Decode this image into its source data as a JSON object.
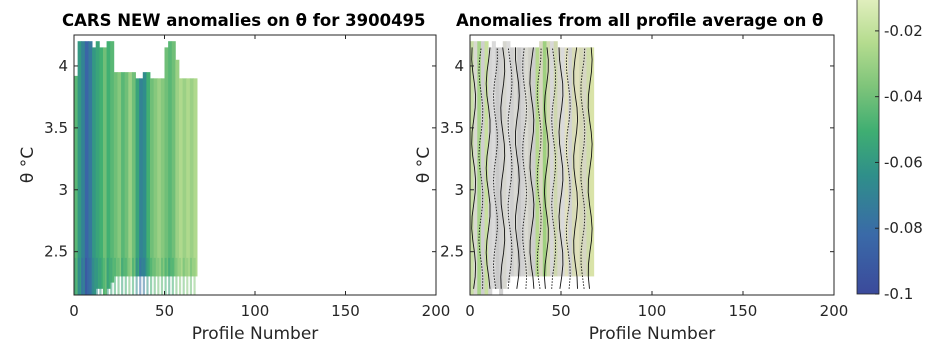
{
  "chart_data": [
    {
      "type": "heatmap",
      "title": "CARS NEW anomalies on θ for 3900495",
      "xlabel": "Profile Number",
      "ylabel": "θ °C",
      "xlim": [
        0,
        200
      ],
      "ylim": [
        2.15,
        4.25
      ],
      "xticks": [
        "0",
        "50",
        "100",
        "150",
        "200"
      ],
      "yticks": [
        "2.5",
        "3",
        "3.5",
        "4"
      ],
      "value_range": [
        -0.1,
        -0.01
      ],
      "profiles": [
        {
          "x": 1,
          "ymin": 2.15,
          "ymax": 3.92,
          "v": -0.045
        },
        {
          "x": 3,
          "ymin": 2.15,
          "ymax": 4.2,
          "v": -0.06
        },
        {
          "x": 5,
          "ymin": 2.15,
          "ymax": 4.2,
          "v": -0.07
        },
        {
          "x": 7,
          "ymin": 2.15,
          "ymax": 4.2,
          "v": -0.085
        },
        {
          "x": 9,
          "ymin": 2.15,
          "ymax": 4.2,
          "v": -0.075
        },
        {
          "x": 11,
          "ymin": 2.15,
          "ymax": 4.15,
          "v": -0.06
        },
        {
          "x": 13,
          "ymin": 2.2,
          "ymax": 4.2,
          "v": -0.055
        },
        {
          "x": 15,
          "ymin": 2.2,
          "ymax": 4.15,
          "v": -0.05
        },
        {
          "x": 17,
          "ymin": 2.15,
          "ymax": 4.15,
          "v": -0.04
        },
        {
          "x": 19,
          "ymin": 2.2,
          "ymax": 4.2,
          "v": -0.05
        },
        {
          "x": 21,
          "ymin": 2.25,
          "ymax": 4.2,
          "v": -0.045
        },
        {
          "x": 23,
          "ymin": 2.3,
          "ymax": 3.95,
          "v": -0.04
        },
        {
          "x": 25,
          "ymin": 2.3,
          "ymax": 3.95,
          "v": -0.035
        },
        {
          "x": 27,
          "ymin": 2.3,
          "ymax": 3.95,
          "v": -0.045
        },
        {
          "x": 29,
          "ymin": 2.3,
          "ymax": 3.95,
          "v": -0.04
        },
        {
          "x": 31,
          "ymin": 2.3,
          "ymax": 3.95,
          "v": -0.03
        },
        {
          "x": 33,
          "ymin": 2.3,
          "ymax": 3.95,
          "v": -0.04
        },
        {
          "x": 35,
          "ymin": 2.3,
          "ymax": 3.9,
          "v": -0.055
        },
        {
          "x": 37,
          "ymin": 2.3,
          "ymax": 3.9,
          "v": -0.07
        },
        {
          "x": 39,
          "ymin": 2.3,
          "ymax": 3.95,
          "v": -0.065
        },
        {
          "x": 41,
          "ymin": 2.3,
          "ymax": 3.95,
          "v": -0.05
        },
        {
          "x": 43,
          "ymin": 2.3,
          "ymax": 3.9,
          "v": -0.04
        },
        {
          "x": 45,
          "ymin": 2.3,
          "ymax": 3.9,
          "v": -0.035
        },
        {
          "x": 47,
          "ymin": 2.3,
          "ymax": 3.9,
          "v": -0.03
        },
        {
          "x": 49,
          "ymin": 2.3,
          "ymax": 3.9,
          "v": -0.035
        },
        {
          "x": 51,
          "ymin": 2.3,
          "ymax": 4.15,
          "v": -0.04
        },
        {
          "x": 53,
          "ymin": 2.3,
          "ymax": 4.2,
          "v": -0.045
        },
        {
          "x": 55,
          "ymin": 2.3,
          "ymax": 4.2,
          "v": -0.04
        },
        {
          "x": 57,
          "ymin": 2.3,
          "ymax": 4.05,
          "v": -0.03
        },
        {
          "x": 59,
          "ymin": 2.3,
          "ymax": 3.9,
          "v": -0.025
        },
        {
          "x": 61,
          "ymin": 2.3,
          "ymax": 3.9,
          "v": -0.03
        },
        {
          "x": 63,
          "ymin": 2.3,
          "ymax": 3.9,
          "v": -0.025
        },
        {
          "x": 65,
          "ymin": 2.3,
          "ymax": 3.9,
          "v": -0.03
        },
        {
          "x": 67,
          "ymin": 2.3,
          "ymax": 3.9,
          "v": -0.025
        }
      ]
    },
    {
      "type": "heatmap",
      "title": "Anomalies from all profile average on θ",
      "xlabel": "Profile Number",
      "ylabel": "θ °C",
      "xlim": [
        0,
        200
      ],
      "ylim": [
        2.15,
        4.25
      ],
      "xticks": [
        "0",
        "50",
        "100",
        "150",
        "200"
      ],
      "yticks": [
        "2.5",
        "3",
        "3.5",
        "4"
      ],
      "note_contours": "solid and dotted black contour lines overlaid",
      "profiles": [
        {
          "x": 1,
          "ymin": 2.15,
          "ymax": 4.2,
          "c": "#c9dfa6"
        },
        {
          "x": 3,
          "ymin": 2.15,
          "ymax": 4.2,
          "c": "#d8d8d0"
        },
        {
          "x": 5,
          "ymin": 2.15,
          "ymax": 4.2,
          "c": "#a9d48a"
        },
        {
          "x": 7,
          "ymin": 2.15,
          "ymax": 4.2,
          "c": "#cfcfcf"
        },
        {
          "x": 9,
          "ymin": 2.15,
          "ymax": 4.2,
          "c": "#c8e0a0"
        },
        {
          "x": 11,
          "ymin": 2.15,
          "ymax": 4.15,
          "c": "#d4d4d4"
        },
        {
          "x": 13,
          "ymin": 2.2,
          "ymax": 4.2,
          "c": "#dadada"
        },
        {
          "x": 15,
          "ymin": 2.2,
          "ymax": 4.15,
          "c": "#c9c9c9"
        },
        {
          "x": 17,
          "ymin": 2.15,
          "ymax": 4.15,
          "c": "#d0d0d0"
        },
        {
          "x": 19,
          "ymin": 2.2,
          "ymax": 4.2,
          "c": "#d6d6cf"
        },
        {
          "x": 21,
          "ymin": 2.25,
          "ymax": 4.2,
          "c": "#dcdcdc"
        },
        {
          "x": 23,
          "ymin": 2.3,
          "ymax": 4.15,
          "c": "#cfcfcf"
        },
        {
          "x": 25,
          "ymin": 2.3,
          "ymax": 4.15,
          "c": "#d9d9d4"
        },
        {
          "x": 27,
          "ymin": 2.3,
          "ymax": 4.15,
          "c": "#c7c7c7"
        },
        {
          "x": 29,
          "ymin": 2.3,
          "ymax": 4.15,
          "c": "#d2d2d2"
        },
        {
          "x": 31,
          "ymin": 2.3,
          "ymax": 4.15,
          "c": "#dadad2"
        },
        {
          "x": 33,
          "ymin": 2.3,
          "ymax": 4.15,
          "c": "#d0d0c8"
        },
        {
          "x": 35,
          "ymin": 2.3,
          "ymax": 4.15,
          "c": "#cdcdcd"
        },
        {
          "x": 37,
          "ymin": 2.3,
          "ymax": 4.15,
          "c": "#b7d98f"
        },
        {
          "x": 39,
          "ymin": 2.3,
          "ymax": 4.2,
          "c": "#d8d8c0"
        },
        {
          "x": 41,
          "ymin": 2.3,
          "ymax": 4.2,
          "c": "#9fd07f"
        },
        {
          "x": 43,
          "ymin": 2.3,
          "ymax": 4.2,
          "c": "#d4dcb4"
        },
        {
          "x": 45,
          "ymin": 2.3,
          "ymax": 4.2,
          "c": "#d8d8d8"
        },
        {
          "x": 47,
          "ymin": 2.3,
          "ymax": 4.2,
          "c": "#cfd8b0"
        },
        {
          "x": 49,
          "ymin": 2.3,
          "ymax": 4.15,
          "c": "#d8d8cc"
        },
        {
          "x": 51,
          "ymin": 2.3,
          "ymax": 4.15,
          "c": "#dadada"
        },
        {
          "x": 53,
          "ymin": 2.3,
          "ymax": 4.15,
          "c": "#e1e1c0"
        },
        {
          "x": 55,
          "ymin": 2.3,
          "ymax": 4.15,
          "c": "#d2d2d2"
        },
        {
          "x": 57,
          "ymin": 2.3,
          "ymax": 4.15,
          "c": "#d8dcb8"
        },
        {
          "x": 59,
          "ymin": 2.3,
          "ymax": 4.15,
          "c": "#e0e0bc"
        },
        {
          "x": 61,
          "ymin": 2.3,
          "ymax": 4.15,
          "c": "#d4d8b6"
        },
        {
          "x": 63,
          "ymin": 2.3,
          "ymax": 4.15,
          "c": "#d6d6c4"
        },
        {
          "x": 65,
          "ymin": 2.3,
          "ymax": 4.15,
          "c": "#d0ddaa"
        },
        {
          "x": 67,
          "ymin": 2.3,
          "ymax": 4.15,
          "c": "#d9e3a8"
        }
      ]
    }
  ],
  "colorbar": {
    "ticks": [
      "-0.02",
      "-0.04",
      "-0.06",
      "-0.08",
      "-0.1"
    ],
    "range": [
      -0.1,
      -0.01
    ]
  },
  "colors": {
    "axes": "#262626",
    "low": "#3b4a9b",
    "mid": "#2d9c7f",
    "high": "#d7ecb0"
  }
}
